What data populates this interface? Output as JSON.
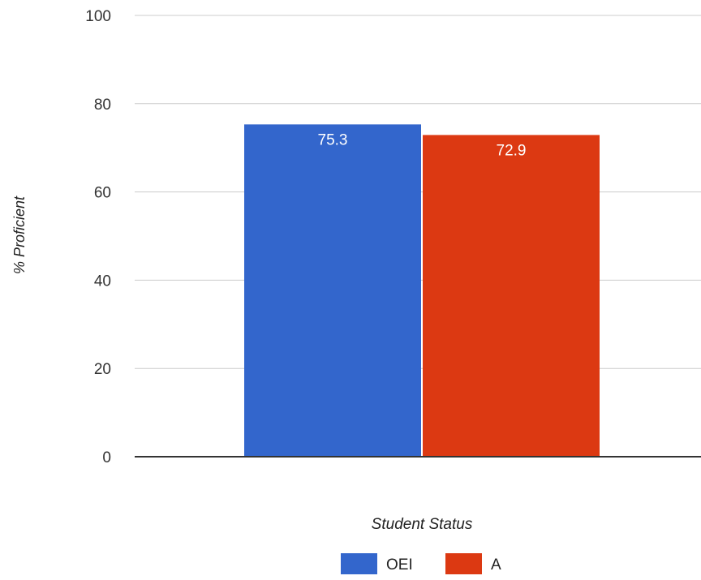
{
  "chart_data": {
    "type": "bar",
    "categories": [
      ""
    ],
    "series": [
      {
        "name": "OEI",
        "values": [
          75.3
        ],
        "color": "#3366cc"
      },
      {
        "name": "A",
        "values": [
          72.9
        ],
        "color": "#dc3912"
      }
    ],
    "data_labels": [
      "75.3",
      "72.9"
    ],
    "xlabel": "Student Status",
    "ylabel": "% Proficient",
    "ylim": [
      0,
      100
    ],
    "yticks": [
      0,
      20,
      40,
      60,
      80,
      100
    ],
    "grid": true,
    "legend": "bottom"
  }
}
